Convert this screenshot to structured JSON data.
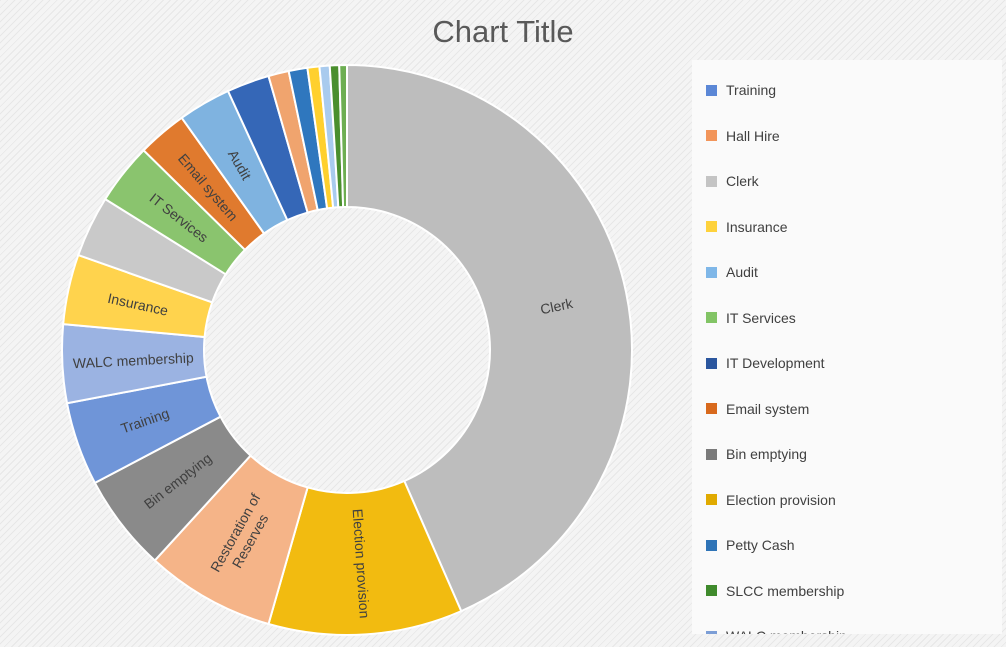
{
  "chart_data": {
    "type": "pie",
    "title": "Chart Title",
    "donut": true,
    "legend_position": "right",
    "slices": [
      {
        "label": "Clerk",
        "value": 45.0,
        "color": "#bdbdbd",
        "data_label": "Clerk"
      },
      {
        "label": "Election provision",
        "value": 11.4,
        "color": "#f2bb10",
        "data_label": "Election provision"
      },
      {
        "label": "Restoration of Reserves",
        "value": 7.6,
        "color": "#f5b488",
        "data_label": "Restoration of Reserves"
      },
      {
        "label": "Bin emptying",
        "value": 5.7,
        "color": "#8a8a8a",
        "data_label": "Bin emptying"
      },
      {
        "label": "Training",
        "value": 4.9,
        "color": "#6f95d8",
        "data_label": "Training"
      },
      {
        "label": "WALC membership",
        "value": 4.6,
        "color": "#9bb3e2",
        "data_label": "WALC membership"
      },
      {
        "label": "Insurance",
        "value": 4.1,
        "color": "#ffd34d",
        "data_label": "Insurance"
      },
      {
        "label": "Hall Hire",
        "value": 3.6,
        "color": "#c9c9c9",
        "data_label": ""
      },
      {
        "label": "IT Services",
        "value": 3.6,
        "color": "#8ac46e",
        "data_label": "IT Services"
      },
      {
        "label": "Email system",
        "value": 2.9,
        "color": "#e07a2e",
        "data_label": "Email system"
      },
      {
        "label": "Audit",
        "value": 3.1,
        "color": "#7fb3e0",
        "data_label": "Audit"
      },
      {
        "label": "IT Development",
        "value": 2.5,
        "color": "#3567b7",
        "data_label": ""
      },
      {
        "label": "",
        "value": 1.2,
        "color": "#f0a46e",
        "data_label": ""
      },
      {
        "label": "Petty Cash",
        "value": 1.1,
        "color": "#2f77be",
        "data_label": ""
      },
      {
        "label": "",
        "value": 0.7,
        "color": "#ffd02e",
        "data_label": ""
      },
      {
        "label": "",
        "value": 0.6,
        "color": "#a9cbee",
        "data_label": ""
      },
      {
        "label": "SLCC membership",
        "value": 0.55,
        "color": "#4a8f2e",
        "data_label": ""
      },
      {
        "label": "",
        "value": 0.45,
        "color": "#6dae52",
        "data_label": ""
      }
    ],
    "legend": [
      {
        "label": "Training",
        "color": "#5b87d6"
      },
      {
        "label": "Hall Hire",
        "color": "#f2955a"
      },
      {
        "label": "Clerk",
        "color": "#c4c4c4"
      },
      {
        "label": "Insurance",
        "color": "#fed23c"
      },
      {
        "label": "Audit",
        "color": "#7fb7e8"
      },
      {
        "label": "IT Services",
        "color": "#82c465"
      },
      {
        "label": "IT Development",
        "color": "#2b569e"
      },
      {
        "label": "Email system",
        "color": "#d8691c"
      },
      {
        "label": "Bin emptying",
        "color": "#7a7a7a"
      },
      {
        "label": "Election provision",
        "color": "#e0aa00"
      },
      {
        "label": "Petty Cash",
        "color": "#2f74b7"
      },
      {
        "label": "SLCC membership",
        "color": "#3f8a2c"
      },
      {
        "label": "WALC membership",
        "color": "#7c9ed6"
      }
    ]
  }
}
